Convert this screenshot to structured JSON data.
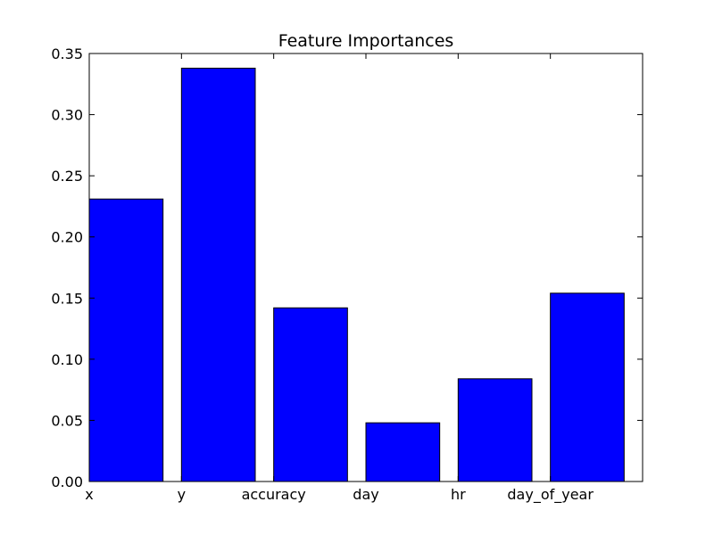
{
  "chart_data": {
    "type": "bar",
    "title": "Feature Importances",
    "xlabel": "",
    "ylabel": "",
    "categories": [
      "x",
      "y",
      "accuracy",
      "day",
      "hr",
      "day_of_year"
    ],
    "values": [
      0.231,
      0.338,
      0.142,
      0.048,
      0.084,
      0.154
    ],
    "ylim": [
      0,
      0.35
    ],
    "xlim": [
      0,
      6
    ],
    "yticks": [
      "0.00",
      "0.05",
      "0.10",
      "0.15",
      "0.20",
      "0.25",
      "0.30",
      "0.35"
    ],
    "grid": false,
    "legend": "none",
    "colors": {
      "bar_fill": "#0000ff",
      "bar_edge": "#000000",
      "axes": "#000000",
      "background": "#ffffff"
    }
  }
}
